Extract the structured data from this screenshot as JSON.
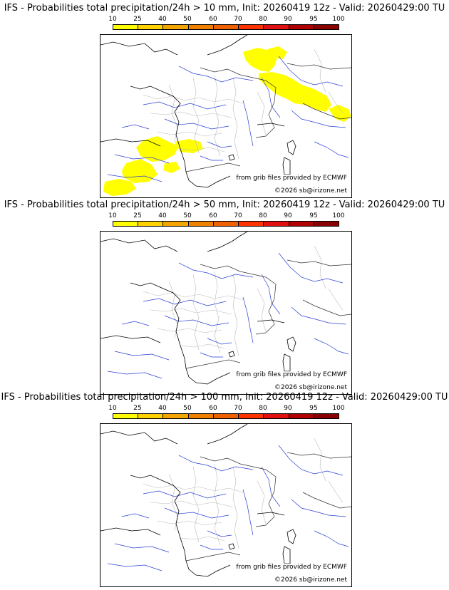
{
  "legend": {
    "ticks": [
      "10",
      "25",
      "40",
      "50",
      "60",
      "70",
      "80",
      "90",
      "95",
      "100"
    ],
    "colors": [
      "#ffff00",
      "#ffd200",
      "#f4a500",
      "#f08000",
      "#ee6000",
      "#ff3300",
      "#e01010",
      "#b00000",
      "#8a0000",
      "#5a0000"
    ]
  },
  "panels": [
    {
      "title": "IFS - Probabilities total precipitation/24h > 10 mm, Init: 20260419 12z - Valid: 20260429:00 TU",
      "credit_source": "from grib files provided by ECMWF",
      "credit_copyright": "©2026 sb@irizone.net",
      "has_precip": true
    },
    {
      "title": "IFS - Probabilities total precipitation/24h > 50 mm, Init: 20260419 12z - Valid: 20260429:00 TU",
      "credit_source": "from grib files provided by ECMWF",
      "credit_copyright": "©2026 sb@irizone.net",
      "has_precip": false
    },
    {
      "title": "IFS - Probabilities total precipitation/24h > 100 mm, Init: 20260419 12z - Valid: 20260429:00 TU",
      "credit_source": "from grib files provided by ECMWF",
      "credit_copyright": "©2026 sb@irizone.net",
      "has_precip": false
    }
  ]
}
